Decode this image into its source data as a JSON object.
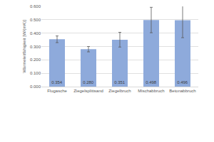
{
  "chart_data": {
    "type": "bar",
    "y_label": "Wärmeleitfähigkeit [W/(mK)]",
    "categories": [
      "Flugasche",
      "Ziegelsplittsand",
      "Ziegelbruch",
      "Mischabbruch",
      "Betonabbruch"
    ],
    "values": [
      0.354,
      0.28,
      0.351,
      0.498,
      0.496
    ],
    "value_labels": [
      "0.354",
      "0.280",
      "0.351",
      "0.498",
      "0.496"
    ],
    "error": [
      0.025,
      0.02,
      0.055,
      0.095,
      0.13
    ],
    "color": "#8eaadb",
    "ylim": [
      0,
      0.6
    ],
    "yticks": [
      {
        "value": 0,
        "label": "0.000"
      },
      {
        "value": 0.1,
        "label": "0.100"
      },
      {
        "value": 0.2,
        "label": "0.200"
      },
      {
        "value": 0.3,
        "label": "0.300"
      },
      {
        "value": 0.4,
        "label": "0.400"
      },
      {
        "value": 0.5,
        "label": "0.500"
      },
      {
        "value": 0.6,
        "label": "0.600"
      }
    ],
    "grid": true,
    "data_labels": true
  }
}
